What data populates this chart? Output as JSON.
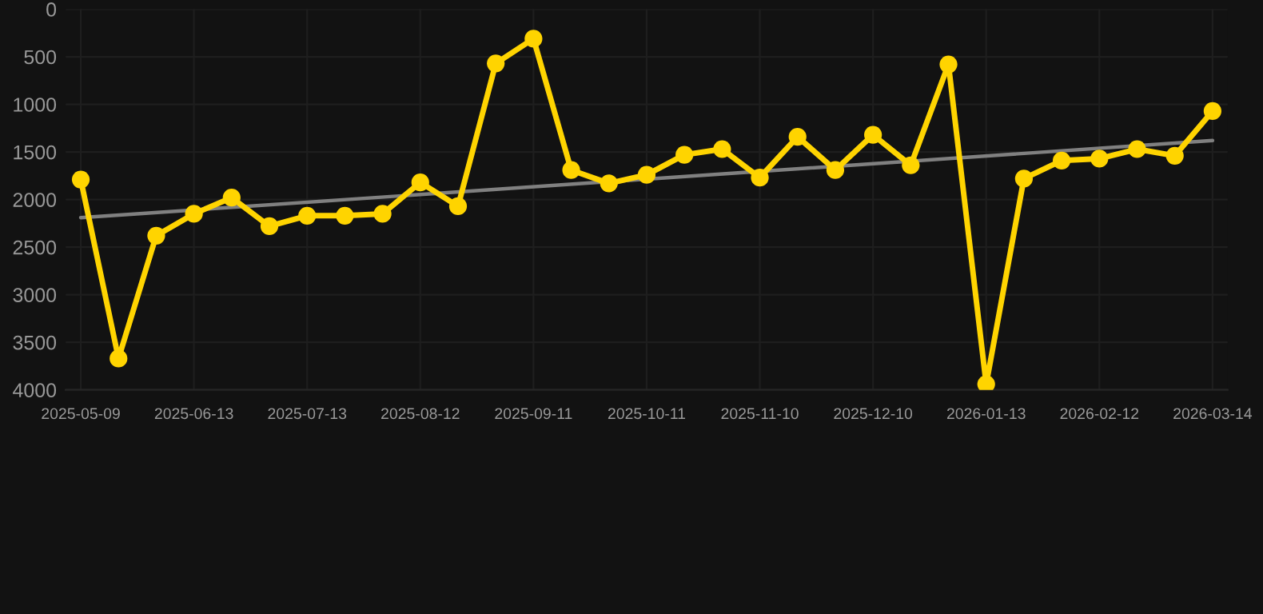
{
  "chart_data": {
    "type": "line",
    "categories": [
      "2025-05-09",
      null,
      null,
      "2025-06-13",
      null,
      null,
      "2025-07-13",
      null,
      null,
      "2025-08-12",
      null,
      null,
      "2025-09-11",
      null,
      null,
      "2025-10-11",
      null,
      null,
      "2025-11-10",
      null,
      null,
      "2025-12-10",
      null,
      null,
      "2026-01-13",
      null,
      null,
      "2026-02-12",
      null,
      null,
      "2026-03-14"
    ],
    "series": [
      {
        "color": "#ffd400",
        "marker": "circle",
        "values": [
          1790,
          3670,
          2380,
          2150,
          1980,
          2280,
          2170,
          2170,
          2150,
          1820,
          2070,
          570,
          310,
          1690,
          1830,
          1740,
          1530,
          1470,
          1770,
          1340,
          1690,
          1320,
          1640,
          580,
          3940,
          1780,
          1590,
          1570,
          1470,
          1540,
          1070
        ]
      },
      {
        "color": "#808080",
        "marker": "none",
        "values": [
          2190,
          null,
          null,
          null,
          null,
          null,
          null,
          null,
          null,
          null,
          null,
          null,
          null,
          null,
          null,
          null,
          null,
          null,
          null,
          null,
          null,
          null,
          null,
          null,
          null,
          null,
          null,
          null,
          null,
          null,
          1380
        ]
      }
    ],
    "ylim": [
      4000,
      0
    ],
    "yticks": [
      0,
      500,
      1000,
      1500,
      2000,
      2500,
      3000,
      3500,
      4000
    ],
    "grid": true,
    "legend": false,
    "line_style": "solid"
  }
}
